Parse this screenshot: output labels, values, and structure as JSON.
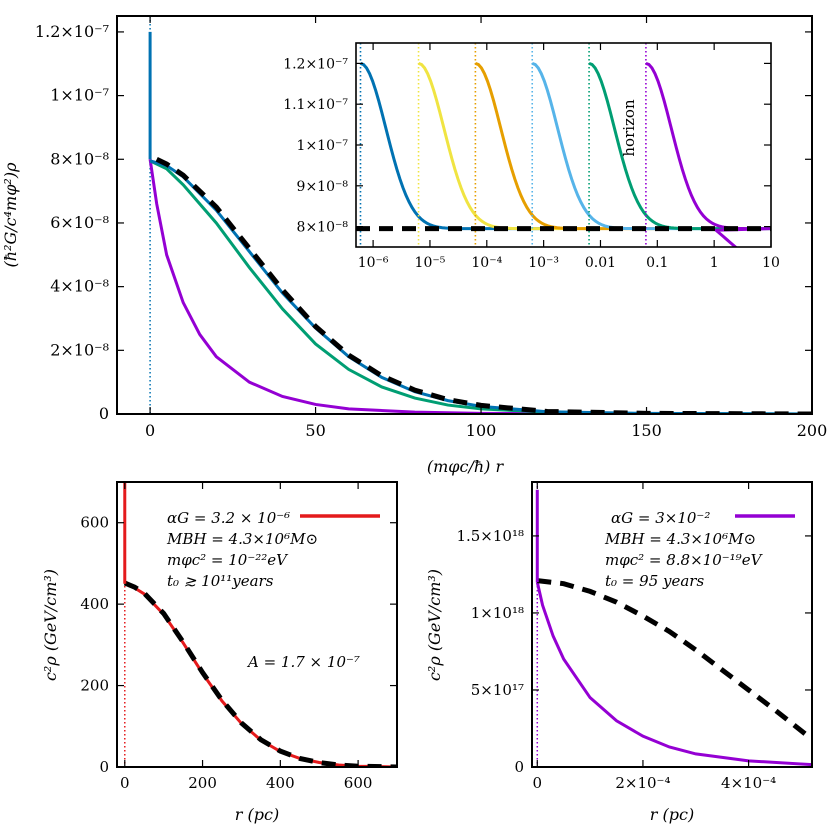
{
  "chart_data": [
    {
      "type": "line",
      "panel": "main",
      "xlabel": "(mφc/ħ) r",
      "ylabel": "(ħ²G/c⁴mφ²)ρ",
      "xlim": [
        -10,
        200
      ],
      "ylim": [
        0,
        1.25e-07
      ],
      "xticks": [
        0,
        50,
        100,
        150,
        200
      ],
      "xtick_labels": [
        "0",
        "50",
        "100",
        "150",
        "200"
      ],
      "yticks": [
        0,
        2e-08,
        4e-08,
        6e-08,
        8e-08,
        1e-07,
        1.2e-07
      ],
      "ytick_labels": [
        "0",
        "2×10⁻⁸",
        "4×10⁻⁸",
        "6×10⁻⁸",
        "8×10⁻⁸",
        "1×10⁻⁷",
        "1.2×10⁻⁷"
      ],
      "series": [
        {
          "name": "purple",
          "color": "#9400d3",
          "x": [
            0,
            2,
            5,
            10,
            15,
            20,
            30,
            40,
            50,
            60,
            80,
            100,
            150,
            200
          ],
          "y": [
            8e-08,
            6.6e-08,
            5e-08,
            3.5e-08,
            2.5e-08,
            1.8e-08,
            1e-08,
            5.5e-09,
            3e-09,
            1.6e-09,
            6e-10,
            2e-10,
            0,
            0
          ]
        },
        {
          "name": "green",
          "color": "#009e73",
          "x": [
            0,
            5,
            10,
            20,
            30,
            40,
            50,
            60,
            70,
            80,
            90,
            100,
            120,
            150,
            200
          ],
          "y": [
            7.95e-08,
            7.7e-08,
            7.2e-08,
            6e-08,
            4.6e-08,
            3.3e-08,
            2.2e-08,
            1.4e-08,
            8.5e-09,
            5e-09,
            2.8e-09,
            1.6e-09,
            6e-10,
            1e-10,
            0
          ]
        },
        {
          "name": "blue",
          "color": "#0072b2",
          "x": [
            0,
            5,
            10,
            20,
            30,
            40,
            50,
            60,
            70,
            80,
            90,
            100,
            120,
            150,
            200
          ],
          "y": [
            7.95e-08,
            7.8e-08,
            7.45e-08,
            6.4e-08,
            5.1e-08,
            3.8e-08,
            2.7e-08,
            1.8e-08,
            1.15e-08,
            7e-09,
            4.2e-09,
            2.4e-09,
            7e-10,
            2e-10,
            0
          ]
        },
        {
          "name": "black-dashed",
          "color": "#000000",
          "dashed": true,
          "x": [
            2,
            5,
            10,
            20,
            30,
            40,
            50,
            60,
            70,
            80,
            90,
            100,
            120,
            150,
            200
          ],
          "y": [
            8e-08,
            7.85e-08,
            7.5e-08,
            6.5e-08,
            5.2e-08,
            3.9e-08,
            2.75e-08,
            1.85e-08,
            1.2e-08,
            7.5e-09,
            4.5e-09,
            2.7e-09,
            8e-10,
            2e-10,
            0
          ]
        }
      ],
      "spike": {
        "x": 0,
        "y0": 8e-08,
        "y1": 1.2e-07
      },
      "vline": {
        "x": 0,
        "dotted": true
      }
    },
    {
      "type": "line",
      "panel": "inset",
      "xscale": "log",
      "xlim": [
        5e-07,
        10
      ],
      "ylim": [
        7.5e-08,
        1.25e-07
      ],
      "xticks": [
        1e-06,
        1e-05,
        0.0001,
        0.001,
        0.01,
        0.1,
        1,
        10
      ],
      "xtick_labels": [
        "10⁻⁶",
        "10⁻⁵",
        "10⁻⁴",
        "10⁻³",
        "0.01",
        "0.1",
        "1",
        "10"
      ],
      "yticks": [
        8e-08,
        9e-08,
        1e-07,
        1.1e-07,
        1.2e-07
      ],
      "ytick_labels": [
        "8×10⁻⁸",
        "9×10⁻⁸",
        "1×10⁻⁷",
        "1.1×10⁻⁷",
        "1.2×10⁻⁷"
      ],
      "annotation": "horizon",
      "floor": 7.95e-08,
      "horizons": [
        {
          "x": 6e-07,
          "color": "#0072b2"
        },
        {
          "x": 6.3e-06,
          "color": "#f0e442"
        },
        {
          "x": 6.3e-05,
          "color": "#e69f00"
        },
        {
          "x": 0.00063,
          "color": "#56b4e9"
        },
        {
          "x": 0.0063,
          "color": "#009e73"
        },
        {
          "x": 0.063,
          "color": "#9400d3"
        }
      ],
      "dashed_level": 7.95e-08
    },
    {
      "type": "line",
      "panel": "bottom-left",
      "xlabel": "r (pc)",
      "ylabel": "c²ρ (GeV/cm³)",
      "xlim": [
        -20,
        700
      ],
      "ylim": [
        0,
        700
      ],
      "xticks": [
        0,
        200,
        400,
        600
      ],
      "xtick_labels": [
        "0",
        "200",
        "400",
        "600"
      ],
      "yticks": [
        0,
        200,
        400,
        600
      ],
      "ytick_labels": [
        "0",
        "200",
        "400",
        "600"
      ],
      "series": [
        {
          "name": "αG = 3.2 × 10⁻⁶",
          "color": "#e41a1c",
          "x": [
            0,
            25,
            50,
            100,
            150,
            200,
            250,
            300,
            350,
            400,
            450,
            500,
            550,
            600,
            700
          ],
          "y": [
            450,
            440,
            425,
            375,
            305,
            230,
            162,
            107,
            66,
            38,
            21,
            11,
            5,
            2,
            0
          ]
        },
        {
          "name": "dashed",
          "color": "#000000",
          "dashed": true,
          "x": [
            0,
            25,
            50,
            100,
            150,
            200,
            250,
            300,
            350,
            400,
            450,
            500,
            550,
            600,
            700
          ],
          "y": [
            452,
            442,
            427,
            377,
            307,
            232,
            164,
            108,
            67,
            39,
            21,
            11,
            5,
            2,
            0
          ]
        }
      ],
      "spike": {
        "x": 0,
        "y0": 450,
        "y1": 700
      },
      "legend": [
        "αG = 3.2 × 10⁻⁶",
        "MBH = 4.3×10⁶M⊙",
        "mφc² = 10⁻²²eV",
        "t₀ ≳ 10¹¹years"
      ],
      "annotation": "A = 1.7 × 10⁻⁷"
    },
    {
      "type": "line",
      "panel": "bottom-right",
      "xlabel": "r (pc)",
      "ylabel": "c²ρ (GeV/cm³)",
      "xlim": [
        -1e-05,
        0.00052
      ],
      "ylim": [
        0,
        1.85e+18
      ],
      "xticks": [
        0,
        0.0002,
        0.0004
      ],
      "xtick_labels": [
        "0",
        "2×10⁻⁴",
        "4×10⁻⁴"
      ],
      "yticks": [
        0,
        5e+17,
        1e+18,
        1.5e+18
      ],
      "ytick_labels": [
        "0",
        "5×10¹⁷",
        "1×10¹⁸",
        "1.5×10¹⁸"
      ],
      "series": [
        {
          "name": "αG = 3×10⁻²",
          "color": "#9400d3",
          "x": [
            0,
            1e-05,
            3e-05,
            5e-05,
            0.0001,
            0.00015,
            0.0002,
            0.00025,
            0.0003,
            0.0004,
            0.00052
          ],
          "y": [
            1.2e+18,
            1.05e+18,
            8.5e+17,
            7e+17,
            4.5e+17,
            3e+17,
            2e+17,
            1.3e+17,
            8.5e+16,
            4e+16,
            1.5e+16
          ]
        },
        {
          "name": "dashed",
          "color": "#000000",
          "dashed": true,
          "x": [
            0,
            5e-05,
            0.0001,
            0.00015,
            0.0002,
            0.00025,
            0.0003,
            0.00035,
            0.0004,
            0.00045,
            0.00052
          ],
          "y": [
            1.21e+18,
            1.19e+18,
            1.14e+18,
            1.07e+18,
            9.8e+17,
            8.8e+17,
            7.6e+17,
            6.3e+17,
            5e+17,
            3.7e+17,
            1.8e+17
          ]
        }
      ],
      "spike": {
        "x": 0,
        "y0": 1.2e+18,
        "y1": 1.8e+18
      },
      "legend": [
        "αG = 3×10⁻²",
        "MBH = 4.3×10⁶M⊙",
        "mφc² = 8.8×10⁻¹⁹eV",
        "t₀ = 95 years"
      ]
    }
  ]
}
